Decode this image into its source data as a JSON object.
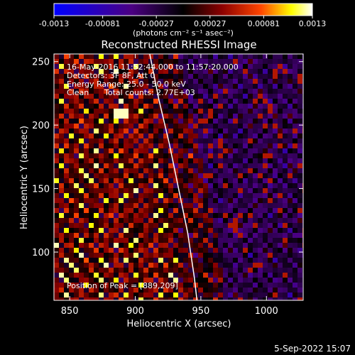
{
  "chart_data": {
    "type": "heatmap",
    "title": "Reconstructed RHESSI Image",
    "xlabel": "Heliocentric X (arcsec)",
    "ylabel": "Heliocentric Y (arcsec)",
    "xlim": [
      838,
      1028
    ],
    "ylim": [
      62,
      256
    ],
    "x_ticks": [
      "850",
      "900",
      "950",
      "1000"
    ],
    "x_tick_values": [
      850,
      900,
      950,
      1000
    ],
    "y_ticks": [
      "100",
      "150",
      "200",
      "250"
    ],
    "y_tick_values": [
      100,
      150,
      200,
      250
    ],
    "colorbar": {
      "min": -0.0013,
      "max": 0.0013,
      "tick_labels": [
        "-0.0013",
        "-0.00081",
        "-0.00027",
        "0.00027",
        "0.00081",
        "0.0013"
      ],
      "tick_values": [
        -0.0013,
        -0.00081,
        -0.00027,
        0.00027,
        0.00081,
        0.0013
      ],
      "units": "(photons cm⁻² s⁻¹ asec⁻²)",
      "colors": [
        "#0000ff",
        "#4b0082",
        "#000000",
        "#8b0000",
        "#ff4500",
        "#ffff00",
        "#ffffff"
      ]
    },
    "annotations": {
      "time_range": "16-May-2016 11:52:44.000 to 11:57:20.000",
      "detectors": "Detectors: 3F 8F, Att 0",
      "energy": "Energy Range: 25.0 - 50.0 keV",
      "method": "Clean",
      "counts": "Total counts: 2.77E+03",
      "peak": "Position of Peak = [889,209]"
    },
    "limb_curve": [
      [
        911,
        256
      ],
      [
        918,
        220
      ],
      [
        926,
        185
      ],
      [
        933,
        150
      ],
      [
        940,
        115
      ],
      [
        945,
        80
      ],
      [
        947,
        62
      ]
    ]
  },
  "footer": {
    "date": "5-Sep-2022 15:07"
  }
}
